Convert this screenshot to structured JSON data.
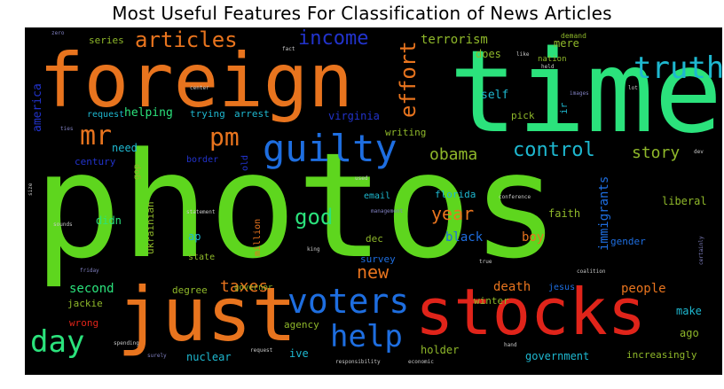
{
  "title": "Most Useful Features For Classification of News Articles",
  "colors": {
    "green": "#5ed61e",
    "mint": "#2be27c",
    "orange": "#e8741e",
    "red": "#e0241a",
    "blue": "#1e6ee0",
    "darkblue": "#2233cc",
    "teal": "#1eb8d0",
    "olive": "#8fb82a"
  },
  "words": {
    "photos": "photos",
    "time": "time",
    "foreign": "foreign",
    "just": "just",
    "stocks": "stocks",
    "truth": "truth",
    "guilty": "guilty",
    "voters": "voters",
    "help": "help",
    "day": "day",
    "mr": "mr",
    "pm": "pm",
    "articles": "articles",
    "income": "income",
    "effort": "effort",
    "terrorism": "terrorism",
    "control": "control",
    "obama": "obama",
    "story": "story",
    "god": "god",
    "year": "year",
    "new": "new",
    "taxes": "taxes",
    "black": "black",
    "boy": "boy",
    "death": "death",
    "people": "people",
    "immigrants": "immigrants",
    "second": "second",
    "virginia": "virginia",
    "does": "does",
    "self": "self",
    "mere": "mere",
    "series": "series",
    "helping": "helping",
    "trying": "trying",
    "arrest": "arrest",
    "request": "request",
    "america": "america",
    "need": "need",
    "century": "century",
    "border": "border",
    "writing": "writing",
    "pick": "pick",
    "ir": "ir",
    "nation": "nation",
    "demand": "demand",
    "didn": "didn",
    "old": "old",
    "gop": "gop",
    "ukrainian": "ukrainian",
    "million": "million",
    "email": "email",
    "florida": "florida",
    "faith": "faith",
    "liberal": "liberal",
    "ap": "ap",
    "state": "state",
    "dec": "dec",
    "survey": "survey",
    "gender": "gender",
    "degree": "degree",
    "governor": "governor",
    "jesus": "jesus",
    "winter": "winter",
    "jackie": "jackie",
    "wrong": "wrong",
    "agency": "agency",
    "make": "make",
    "ago": "ago",
    "holder": "holder",
    "nuclear": "nuclear",
    "ive": "ive",
    "government": "government",
    "increasingly": "increasingly",
    "statement": "statement",
    "conference": "conference",
    "management": "management",
    "king": "king",
    "friday": "friday",
    "sounds": "sounds",
    "true": "true",
    "coalition": "coalition",
    "hand": "hand",
    "spending": "spending",
    "surely": "surely",
    "request2": "request",
    "responsibility": "responsibility",
    "economic": "economic",
    "images": "images",
    "like": "like",
    "fact": "fact",
    "center": "center",
    "used": "used",
    "zero": "zero",
    "ties": "ties",
    "held": "held",
    "size": "size",
    "certainly": "certainly",
    "dev": "dev",
    "lot": "lot"
  }
}
